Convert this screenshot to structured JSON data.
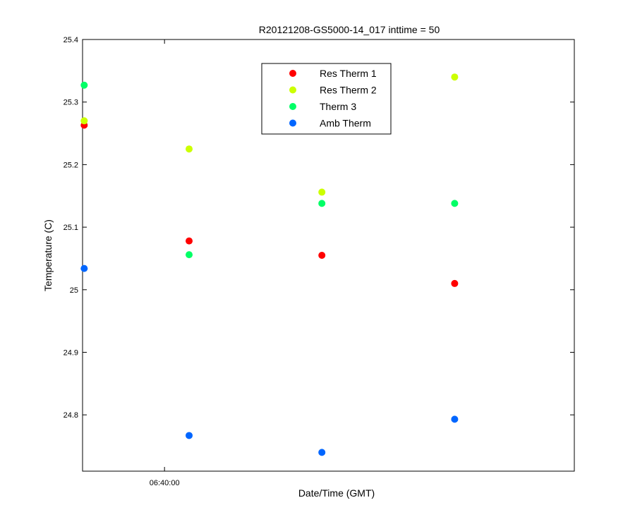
{
  "chart_data": {
    "type": "scatter",
    "title": "R20121208-GS5000-14_017 inttime = 50",
    "xlabel": "Date/Time (GMT)",
    "ylabel": "Temperature (C)",
    "ylim": [
      24.71,
      25.4
    ],
    "y_ticks": [
      24.8,
      24.9,
      25,
      25.1,
      25.2,
      25.3,
      25.4
    ],
    "y_tick_labels": [
      "24.8",
      "24.9",
      "25",
      "25.1",
      "25.2",
      "25.3",
      "25.4"
    ],
    "xlim": [
      "06:39:10",
      "06:44:10"
    ],
    "x_ticks": [
      "06:40:00"
    ],
    "x_tick_labels": [
      "06:40:00"
    ],
    "x": [
      "06:39:11",
      "06:40:15",
      "06:41:36",
      "06:42:57"
    ],
    "legend_position": "top-center",
    "grid": false,
    "series": [
      {
        "name": "Res Therm 1",
        "color": "#ff0000",
        "values": [
          25.263,
          25.078,
          25.055,
          25.01
        ]
      },
      {
        "name": "Res Therm 2",
        "color": "#ccff00",
        "values": [
          25.27,
          25.225,
          25.156,
          25.34
        ]
      },
      {
        "name": "Therm 3",
        "color": "#00ff66",
        "values": [
          25.327,
          25.056,
          25.138,
          25.138
        ]
      },
      {
        "name": "Amb Therm",
        "color": "#0066ff",
        "values": [
          25.034,
          24.767,
          24.74,
          24.793
        ]
      }
    ]
  }
}
